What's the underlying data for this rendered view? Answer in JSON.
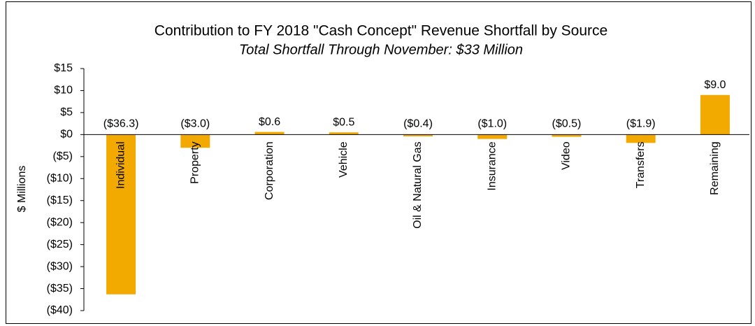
{
  "chart_data": {
    "type": "bar",
    "title": "Contribution to FY 2018 \"Cash Concept\" Revenue Shortfall by Source",
    "subtitle": "Total Shortfall Through November: $33 Million",
    "y_label": "$ Millions",
    "categories": [
      "Individual",
      "Property",
      "Corporation",
      "Vehicle",
      "Oil & Natural Gas",
      "Insurance",
      "Video",
      "Transfers",
      "Remaining"
    ],
    "values": [
      -36.3,
      -3.0,
      0.6,
      0.5,
      -0.4,
      -1.0,
      -0.5,
      -1.9,
      9.0
    ],
    "value_labels": [
      "($36.3)",
      "($3.0)",
      "$0.6",
      "$0.5",
      "($0.4)",
      "($1.0)",
      "($0.5)",
      "($1.9)",
      "$9.0"
    ],
    "color": "#f2a900",
    "ylim": [
      -40,
      15
    ],
    "yticks": [
      {
        "value": -40,
        "label": "($40)"
      },
      {
        "value": -35,
        "label": "($35)"
      },
      {
        "value": -30,
        "label": "($30)"
      },
      {
        "value": -25,
        "label": "($25)"
      },
      {
        "value": -20,
        "label": "($20)"
      },
      {
        "value": -15,
        "label": "($15)"
      },
      {
        "value": -10,
        "label": "($10)"
      },
      {
        "value": -5,
        "label": "($5)"
      },
      {
        "value": 0,
        "label": "$0"
      },
      {
        "value": 5,
        "label": "$5"
      },
      {
        "value": 10,
        "label": "$10"
      },
      {
        "value": 15,
        "label": "$15"
      }
    ],
    "grid": false
  }
}
